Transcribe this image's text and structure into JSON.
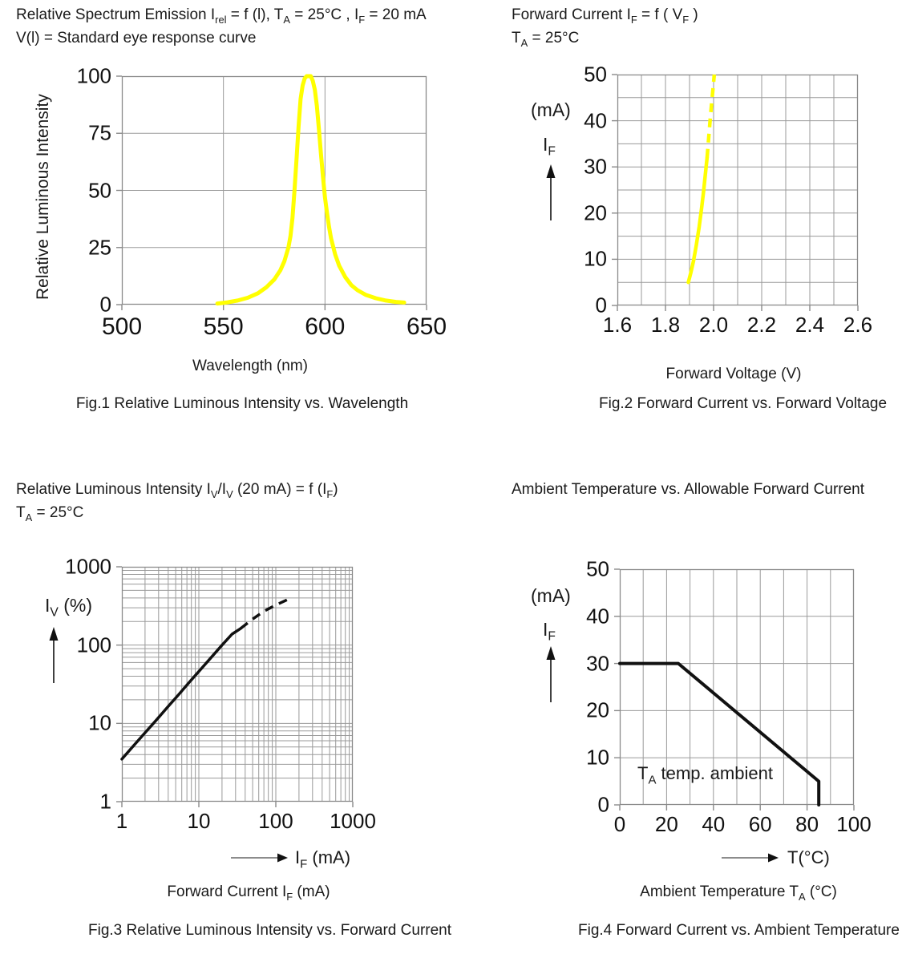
{
  "colors": {
    "grid": "#9a9a9a",
    "border": "#8a8a8a",
    "yellow": "#ffff00",
    "black_curve": "#111111",
    "text": "#1a1a1a"
  },
  "chart_data": [
    {
      "id": "fig1",
      "type": "line",
      "title_parts": [
        {
          "t": "Relative Spectrum Emission I"
        },
        {
          "t": "rel",
          "sub": true
        },
        {
          "t": " = f (l), T"
        },
        {
          "t": "A",
          "sub": true
        },
        {
          "t": " = 25°C , I"
        },
        {
          "t": "F",
          "sub": true
        },
        {
          "t": " = 20 mA"
        }
      ],
      "subtitle_parts": [
        {
          "t": "V(l) = Standard eye response curve"
        }
      ],
      "ylabel": "Relative Luminous Intensity",
      "xlabel": "Wavelength (nm)",
      "caption": "Fig.1 Relative Luminous Intensity vs. Wavelength",
      "x": {
        "scale": "linear",
        "min": 500,
        "max": 650,
        "grid": [
          550,
          600
        ],
        "ticks": [
          {
            "v": 500,
            "l": "500"
          },
          {
            "v": 550,
            "l": "550"
          },
          {
            "v": 600,
            "l": "600"
          },
          {
            "v": 650,
            "l": "650"
          }
        ]
      },
      "y": {
        "scale": "linear",
        "min": 0,
        "max": 100,
        "grid": [
          25,
          50,
          75
        ],
        "ticks": [
          {
            "v": 0,
            "l": "0"
          },
          {
            "v": 25,
            "l": "25"
          },
          {
            "v": 50,
            "l": "50"
          },
          {
            "v": 75,
            "l": "75"
          },
          {
            "v": 100,
            "l": "100"
          }
        ]
      },
      "series": [
        {
          "name": "emission-spectrum",
          "color": "#ffff00",
          "width": 5,
          "solid": [
            [
              547,
              0.5
            ],
            [
              552,
              1
            ],
            [
              557,
              1.8
            ],
            [
              562,
              3
            ],
            [
              567,
              5
            ],
            [
              571,
              7.5
            ],
            [
              575,
              11
            ],
            [
              578,
              15
            ],
            [
              580,
              19
            ],
            [
              582,
              25
            ],
            [
              583,
              30
            ],
            [
              584,
              38
            ],
            [
              585,
              50
            ],
            [
              586,
              64
            ],
            [
              587,
              78
            ],
            [
              588,
              90
            ],
            [
              589,
              96
            ],
            [
              590,
              99
            ],
            [
              591,
              100
            ],
            [
              593,
              100
            ],
            [
              594,
              98
            ],
            [
              595,
              94
            ],
            [
              596,
              87
            ],
            [
              597,
              77
            ],
            [
              598,
              66
            ],
            [
              599,
              56
            ],
            [
              600,
              47
            ],
            [
              601,
              40
            ],
            [
              602,
              34
            ],
            [
              603,
              29
            ],
            [
              605,
              22
            ],
            [
              607,
              17
            ],
            [
              610,
              12
            ],
            [
              613,
              8.5
            ],
            [
              616,
              6.3
            ],
            [
              620,
              4.3
            ],
            [
              625,
              2.8
            ],
            [
              630,
              1.8
            ],
            [
              635,
              1.2
            ],
            [
              639,
              0.9
            ]
          ],
          "dashed": []
        }
      ]
    },
    {
      "id": "fig2",
      "type": "line",
      "title_parts": [
        {
          "t": "Forward Current I"
        },
        {
          "t": "F",
          "sub": true
        },
        {
          "t": " = f ( V"
        },
        {
          "t": "F",
          "sub": true
        },
        {
          "t": " )"
        }
      ],
      "subtitle_parts": [
        {
          "t": "T"
        },
        {
          "t": "A",
          "sub": true
        },
        {
          "t": " = 25°C"
        }
      ],
      "side_unit_parts": [
        {
          "t": "(mA)"
        }
      ],
      "side_sym_parts": [
        {
          "t": "I"
        },
        {
          "t": "F",
          "sub": true
        }
      ],
      "xlabel": "Forward Voltage (V)",
      "caption": "Fig.2 Forward Current vs. Forward Voltage",
      "x": {
        "scale": "linear",
        "min": 1.6,
        "max": 2.6,
        "grid": [
          1.7,
          1.8,
          1.9,
          2.0,
          2.1,
          2.2,
          2.3,
          2.4,
          2.5
        ],
        "ticks": [
          {
            "v": 1.6,
            "l": "1.6"
          },
          {
            "v": 1.8,
            "l": "1.8"
          },
          {
            "v": 2.0,
            "l": "2.0"
          },
          {
            "v": 2.2,
            "l": "2.2"
          },
          {
            "v": 2.4,
            "l": "2.4"
          },
          {
            "v": 2.6,
            "l": "2.6"
          }
        ]
      },
      "y": {
        "scale": "linear",
        "min": 0,
        "max": 50,
        "grid": [
          5,
          10,
          15,
          20,
          25,
          30,
          35,
          40,
          45
        ],
        "ticks": [
          {
            "v": 0,
            "l": "0"
          },
          {
            "v": 10,
            "l": "10"
          },
          {
            "v": 20,
            "l": "20"
          },
          {
            "v": 30,
            "l": "30"
          },
          {
            "v": 40,
            "l": "40"
          },
          {
            "v": 50,
            "l": "50"
          }
        ]
      },
      "series": [
        {
          "name": "iv-curve",
          "color": "#ffff00",
          "width": 4.5,
          "solid": [
            [
              1.895,
              5
            ],
            [
              1.905,
              7
            ],
            [
              1.916,
              9.5
            ],
            [
              1.928,
              13
            ],
            [
              1.94,
              17
            ],
            [
              1.95,
              21
            ],
            [
              1.958,
              24.5
            ],
            [
              1.964,
              27.5
            ],
            [
              1.969,
              30
            ],
            [
              1.973,
              32
            ]
          ],
          "dashed": [
            [
              1.973,
              32
            ],
            [
              1.98,
              36.5
            ],
            [
              1.987,
              41
            ],
            [
              1.995,
              45.5
            ],
            [
              2.003,
              50
            ]
          ]
        }
      ]
    },
    {
      "id": "fig3",
      "type": "line",
      "title_parts": [
        {
          "t": "Relative Luminous Intensity I"
        },
        {
          "t": "V",
          "sub": true
        },
        {
          "t": "/I"
        },
        {
          "t": "V",
          "sub": true
        },
        {
          "t": " (20 mA) = f (I"
        },
        {
          "t": "F",
          "sub": true
        },
        {
          "t": ")"
        }
      ],
      "subtitle_parts": [
        {
          "t": "T"
        },
        {
          "t": "A",
          "sub": true
        },
        {
          "t": " = 25°C"
        }
      ],
      "side_sym_parts": [
        {
          "t": "I"
        },
        {
          "t": "V",
          "sub": true
        },
        {
          "t": " (%)"
        }
      ],
      "axis_arrow_label_parts": [
        {
          "t": "I"
        },
        {
          "t": "F",
          "sub": true
        },
        {
          "t": " (mA)"
        }
      ],
      "xlabel_parts": [
        {
          "t": "Forward Current I"
        },
        {
          "t": "F",
          "sub": true
        },
        {
          "t": " (mA)"
        }
      ],
      "caption": "Fig.3 Relative Luminous Intensity vs. Forward Current",
      "x": {
        "scale": "log",
        "min": 1,
        "max": 1000,
        "grid": [
          2,
          3,
          4,
          5,
          6,
          7,
          8,
          9,
          10,
          20,
          30,
          40,
          50,
          60,
          70,
          80,
          90,
          100,
          200,
          300,
          400,
          500,
          600,
          700,
          800,
          900
        ],
        "ticks": [
          {
            "v": 1,
            "l": "1"
          },
          {
            "v": 10,
            "l": "10"
          },
          {
            "v": 100,
            "l": "100"
          },
          {
            "v": 1000,
            "l": "1000"
          }
        ]
      },
      "y": {
        "scale": "log",
        "min": 1,
        "max": 1000,
        "grid": [
          2,
          3,
          4,
          5,
          6,
          7,
          8,
          9,
          10,
          20,
          30,
          40,
          50,
          60,
          70,
          80,
          90,
          100,
          200,
          300,
          400,
          500,
          600,
          700,
          800,
          900
        ],
        "ticks": [
          {
            "v": 1,
            "l": "1"
          },
          {
            "v": 10,
            "l": "10"
          },
          {
            "v": 100,
            "l": "100"
          },
          {
            "v": 1000,
            "l": "1000"
          }
        ]
      },
      "series": [
        {
          "name": "relative-intensity-curve",
          "color": "#111111",
          "width": 3.5,
          "solid": [
            [
              1,
              3.5
            ],
            [
              1.4,
              5.1
            ],
            [
              2,
              7.6
            ],
            [
              2.8,
              11
            ],
            [
              4,
              16.5
            ],
            [
              5.5,
              23.5
            ],
            [
              7.5,
              33.5
            ],
            [
              10,
              46
            ],
            [
              14,
              67
            ],
            [
              20,
              100
            ],
            [
              27,
              138
            ],
            [
              35,
              163
            ]
          ],
          "dashed": [
            [
              35,
              163
            ],
            [
              50,
              215
            ],
            [
              70,
              270
            ],
            [
              100,
              325
            ],
            [
              145,
              385
            ]
          ]
        }
      ]
    },
    {
      "id": "fig4",
      "type": "line",
      "title_parts": [
        {
          "t": "Ambient Temperature vs. Allowable Forward Current"
        }
      ],
      "side_unit_parts": [
        {
          "t": "(mA)"
        }
      ],
      "side_sym_parts": [
        {
          "t": "I"
        },
        {
          "t": "F",
          "sub": true
        }
      ],
      "axis_arrow_label_parts": [
        {
          "t": "T(°C)"
        }
      ],
      "annotation_parts": [
        {
          "t": "T"
        },
        {
          "t": "A",
          "sub": true
        },
        {
          "t": " temp. ambient"
        }
      ],
      "xlabel_parts": [
        {
          "t": "Ambient Temperature T"
        },
        {
          "t": "A",
          "sub": true
        },
        {
          "t": " (°C)"
        }
      ],
      "caption": "Fig.4 Forward Current vs. Ambient Temperature",
      "x": {
        "scale": "linear",
        "min": 0,
        "max": 100,
        "grid": [
          10,
          20,
          30,
          40,
          50,
          60,
          70,
          80,
          90
        ],
        "ticks": [
          {
            "v": 0,
            "l": "0"
          },
          {
            "v": 20,
            "l": "20"
          },
          {
            "v": 40,
            "l": "40"
          },
          {
            "v": 60,
            "l": "60"
          },
          {
            "v": 80,
            "l": "80"
          },
          {
            "v": 100,
            "l": "100"
          }
        ]
      },
      "y": {
        "scale": "linear",
        "min": 0,
        "max": 50,
        "grid": [
          10,
          20,
          30,
          40
        ],
        "ticks": [
          {
            "v": 0,
            "l": "0"
          },
          {
            "v": 10,
            "l": "10"
          },
          {
            "v": 20,
            "l": "20"
          },
          {
            "v": 30,
            "l": "30"
          },
          {
            "v": 40,
            "l": "40"
          },
          {
            "v": 50,
            "l": "50"
          }
        ]
      },
      "series": [
        {
          "name": "derating-curve",
          "color": "#111111",
          "width": 4,
          "solid": [
            [
              0,
              30
            ],
            [
              25,
              30
            ],
            [
              85,
              5
            ],
            [
              85,
              0
            ]
          ],
          "dashed": []
        }
      ]
    }
  ]
}
